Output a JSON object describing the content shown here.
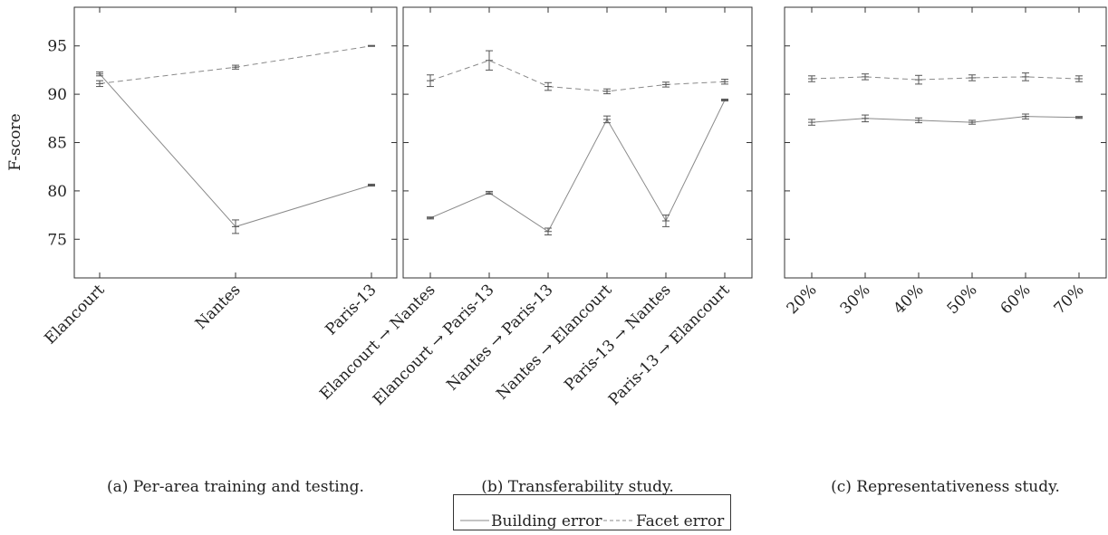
{
  "y_axis_label": "F-score",
  "chart_data": [
    {
      "type": "line",
      "caption": "(a) Per-area training and testing.",
      "ylabel": "F-score",
      "ylim": [
        71,
        99
      ],
      "yticks": [
        75,
        80,
        85,
        90,
        95
      ],
      "categories": [
        "Elancourt",
        "Nantes",
        "Paris-13"
      ],
      "series": [
        {
          "name": "Building error",
          "style": "solid",
          "values": [
            92.1,
            76.3,
            80.6
          ],
          "errors": [
            0.2,
            0.7,
            0.1
          ]
        },
        {
          "name": "Facet error",
          "style": "dashed",
          "values": [
            91.1,
            92.8,
            95.0
          ],
          "errors": [
            0.3,
            0.2,
            0.05
          ]
        }
      ],
      "grid": false
    },
    {
      "type": "line",
      "caption": "(b) Transferability study.",
      "ylim": [
        71,
        99
      ],
      "yticks": [
        75,
        80,
        85,
        90,
        95
      ],
      "categories": [
        "Elancourt → Nantes",
        "Elancourt → Paris-13",
        "Nantes → Paris-13",
        "Nantes → Elancourt",
        "Paris-13 → Nantes",
        "Paris-13 → Elancourt"
      ],
      "series": [
        {
          "name": "Building error",
          "style": "solid",
          "values": [
            77.2,
            79.8,
            75.8,
            87.4,
            76.9,
            89.4
          ],
          "errors": [
            0.1,
            0.15,
            0.35,
            0.35,
            0.6,
            0.1
          ]
        },
        {
          "name": "Facet error",
          "style": "dashed",
          "values": [
            91.4,
            93.5,
            90.8,
            90.3,
            91.0,
            91.3
          ],
          "errors": [
            0.6,
            1.0,
            0.4,
            0.25,
            0.25,
            0.25
          ]
        }
      ],
      "grid": false
    },
    {
      "type": "line",
      "caption": "(c) Representativeness study.",
      "ylim": [
        71,
        99
      ],
      "yticks": [
        75,
        80,
        85,
        90,
        95
      ],
      "categories": [
        "20%",
        "30%",
        "40%",
        "50%",
        "60%",
        "70%"
      ],
      "series": [
        {
          "name": "Building error",
          "style": "solid",
          "values": [
            87.1,
            87.5,
            87.3,
            87.1,
            87.7,
            87.6
          ],
          "errors": [
            0.3,
            0.35,
            0.25,
            0.2,
            0.25,
            0.1
          ]
        },
        {
          "name": "Facet error",
          "style": "dashed",
          "values": [
            91.6,
            91.8,
            91.5,
            91.7,
            91.8,
            91.6
          ],
          "errors": [
            0.3,
            0.3,
            0.45,
            0.3,
            0.4,
            0.3
          ]
        }
      ],
      "grid": false
    }
  ],
  "legend": {
    "placement": "bottom-center",
    "entries": [
      {
        "label": "Building error",
        "style": "solid"
      },
      {
        "label": "Facet error",
        "style": "dashed"
      }
    ]
  },
  "colors": {
    "building": "#8a8a8a",
    "facet": "#8a8a8a",
    "axis": "#333333",
    "text": "#222222"
  }
}
